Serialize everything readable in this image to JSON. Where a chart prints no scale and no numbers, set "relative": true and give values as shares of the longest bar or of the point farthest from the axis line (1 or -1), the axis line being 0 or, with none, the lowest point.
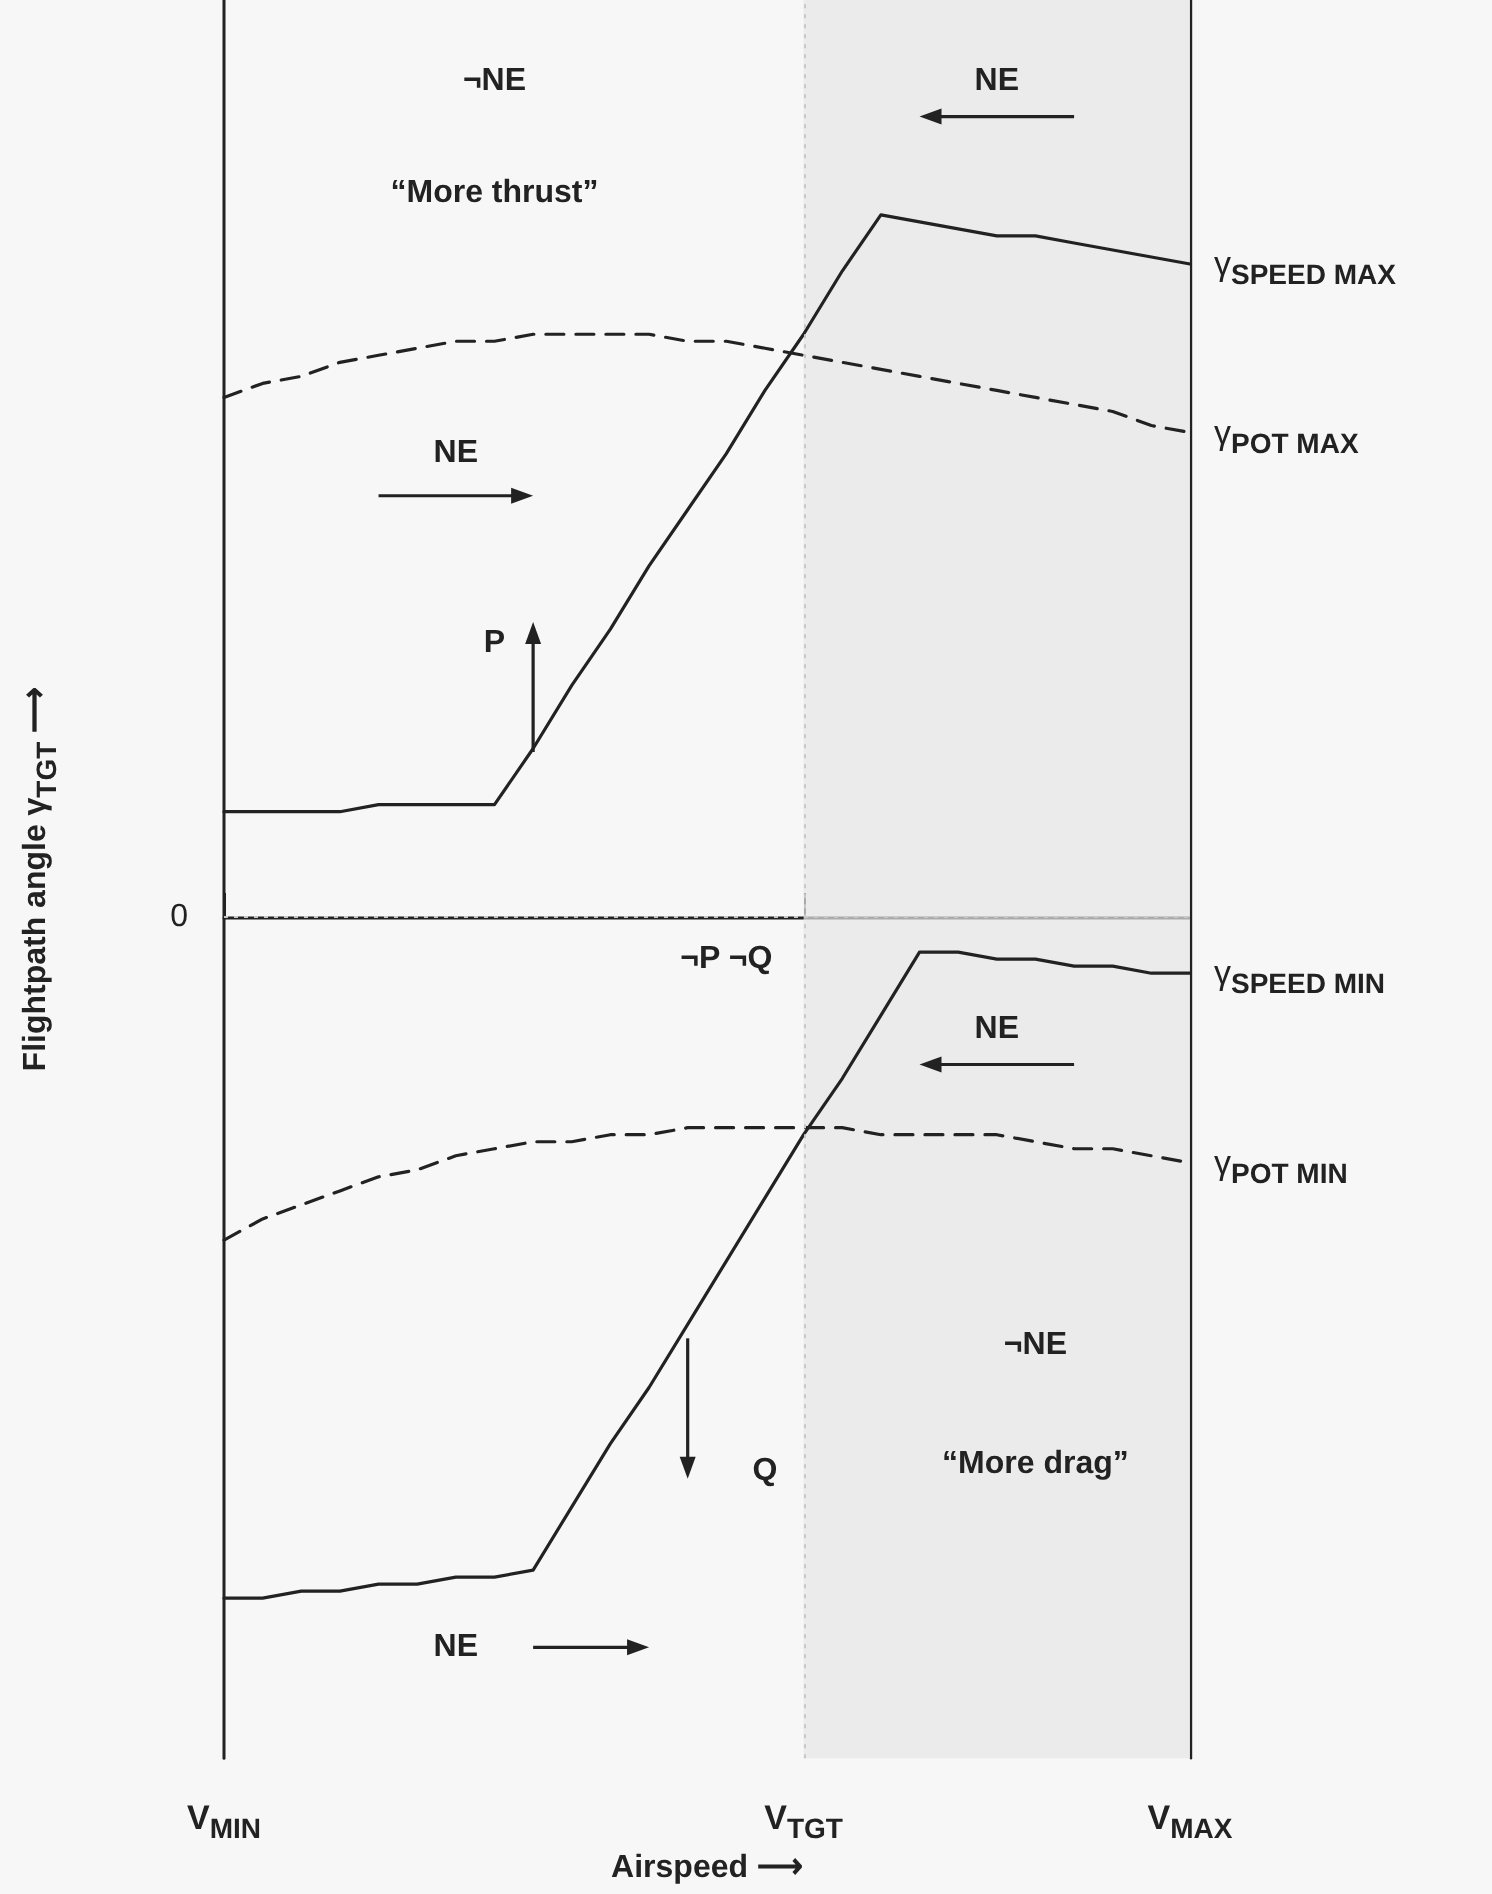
{
  "chart_data": {
    "type": "line",
    "relative": true,
    "xlabel": "Airspeed ⟶",
    "ylabel": "Flightpath angle γ$_{TGT}$ ⟶",
    "categories": [
      "V$_{MIN}$",
      null,
      null,
      null,
      null,
      null,
      null,
      null,
      null,
      null,
      null,
      null,
      null,
      null,
      null,
      "V$_{TGT}$",
      null,
      null,
      null,
      null,
      null,
      null,
      null,
      null,
      null,
      "V$_{MAX}$"
    ],
    "marker": "none",
    "series": [
      {
        "name": "γ$_{SPEED MAX}$",
        "color": "#222222",
        "line_style": "solid",
        "values": [
          0.15,
          0.15,
          0.15,
          0.15,
          0.16,
          0.16,
          0.16,
          0.16,
          0.24,
          0.33,
          0.41,
          0.5,
          0.58,
          0.66,
          0.75,
          0.83,
          0.92,
          1,
          0.99,
          0.98,
          0.97,
          0.97,
          0.96,
          0.95,
          0.94,
          0.93
        ]
      },
      {
        "name": "γ$_{POT MAX}$",
        "color": "#222222",
        "line_style": "dashed",
        "values": [
          0.74,
          0.76,
          0.77,
          0.79,
          0.8,
          0.81,
          0.82,
          0.82,
          0.83,
          0.83,
          0.83,
          0.83,
          0.82,
          0.82,
          0.81,
          0.8,
          0.79,
          0.78,
          0.77,
          0.76,
          0.75,
          0.74,
          0.73,
          0.72,
          0.7,
          0.69
        ]
      },
      {
        "name": "γ$_{SPEED MIN}$",
        "color": "#222222",
        "line_style": "solid",
        "values": [
          -0.97,
          -0.97,
          -0.96,
          -0.96,
          -0.95,
          -0.95,
          -0.94,
          -0.94,
          -0.93,
          -0.84,
          -0.75,
          -0.67,
          -0.58,
          -0.49,
          -0.4,
          -0.31,
          -0.23,
          -0.14,
          -0.05,
          -0.05,
          -0.06,
          -0.06,
          -0.07,
          -0.07,
          -0.08,
          -0.08
        ]
      },
      {
        "name": "γ$_{POT MIN}$",
        "color": "#222222",
        "line_style": "dashed",
        "values": [
          -0.46,
          -0.43,
          -0.41,
          -0.39,
          -0.37,
          -0.36,
          -0.34,
          -0.33,
          -0.32,
          -0.32,
          -0.31,
          -0.31,
          -0.3,
          -0.3,
          -0.3,
          -0.3,
          -0.3,
          -0.31,
          -0.31,
          -0.31,
          -0.31,
          -0.32,
          -0.33,
          -0.33,
          -0.34,
          -0.35
        ]
      }
    ],
    "ref_lines": [
      {
        "axis": "x",
        "value": "V$_{TGT}$",
        "label": null,
        "color": "#c8c8c8",
        "line_style": "dotted"
      },
      {
        "axis": "y",
        "value": 0,
        "label": "0",
        "color": "#c8c8c8",
        "line_style": "dotted"
      }
    ],
    "bands": [
      {
        "axis": "x",
        "from": "V$_{TGT}$",
        "to": "V$_{MAX}$",
        "label": null,
        "color": "#e6e6e6"
      }
    ],
    "annotations": [
      "¬NE",
      "NE",
      "“More thrust”",
      "NE",
      "P",
      "¬P ¬Q",
      "NE",
      "¬NE",
      "Q",
      "“More drag”",
      "NE"
    ]
  }
}
